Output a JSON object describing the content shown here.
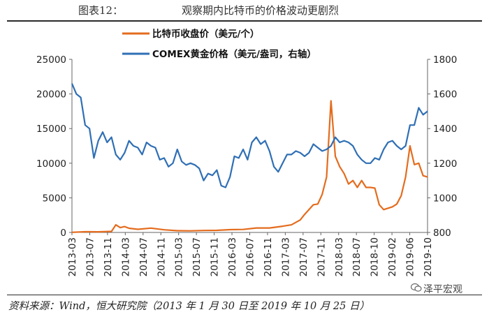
{
  "header": {
    "figure_no": "图表12：",
    "title": "观察期内比特币的价格波动更剧烈"
  },
  "source": "资料来源：Wind，恒大研究院（2013 年 1 月 30 日至 2019 年 10 月 25 日）",
  "watermark": "泽平宏观",
  "chart_data": {
    "type": "line",
    "title": "观察期内比特币的价格波动更剧烈",
    "xlabel": "",
    "ylabel": "",
    "x_tick_labels": [
      "2013-03",
      "2013-07",
      "2013-11",
      "2014-03",
      "2014-07",
      "2014-11",
      "2015-03",
      "2015-07",
      "2015-11",
      "2016-03",
      "2016-07",
      "2016-11",
      "2017-03",
      "2017-07",
      "2017-11",
      "2018-03",
      "2018-07",
      "2018-10",
      "2019-02",
      "2019-06",
      "2019-10"
    ],
    "ylim_left": [
      0,
      25000
    ],
    "yticks_left": [
      0,
      5000,
      10000,
      15000,
      20000,
      25000
    ],
    "ylim_right": [
      800,
      1800
    ],
    "yticks_right": [
      800,
      1000,
      1200,
      1400,
      1600,
      1800
    ],
    "grid": false,
    "legend": "top-left",
    "series": [
      {
        "name": "比特币收盘价（美元/个）",
        "axis": "left",
        "color": "#E46C1E",
        "x": [
          "2013-01",
          "2013-04",
          "2013-07",
          "2013-10",
          "2013-11",
          "2013-12",
          "2014-01",
          "2014-02",
          "2014-04",
          "2014-07",
          "2014-10",
          "2015-01",
          "2015-04",
          "2015-07",
          "2015-10",
          "2016-01",
          "2016-04",
          "2016-07",
          "2016-10",
          "2017-01",
          "2017-03",
          "2017-05",
          "2017-06",
          "2017-08",
          "2017-09",
          "2017-10",
          "2017-11",
          "2017-12",
          "2018-01",
          "2018-02",
          "2018-03",
          "2018-04",
          "2018-05",
          "2018-06",
          "2018-07",
          "2018-08",
          "2018-09",
          "2018-10",
          "2018-11",
          "2018-12",
          "2019-01",
          "2019-02",
          "2019-03",
          "2019-04",
          "2019-05",
          "2019-06",
          "2019-07",
          "2019-08",
          "2019-09",
          "2019-10"
        ],
        "values": [
          20,
          100,
          90,
          150,
          1100,
          700,
          850,
          600,
          450,
          620,
          380,
          250,
          230,
          280,
          300,
          400,
          430,
          650,
          650,
          900,
          1100,
          1800,
          2600,
          4000,
          4100,
          5500,
          8000,
          19000,
          11000,
          9500,
          8500,
          7000,
          7500,
          6500,
          7500,
          6500,
          6500,
          6400,
          4000,
          3300,
          3500,
          3700,
          4100,
          5300,
          8000,
          12500,
          9800,
          10000,
          8200,
          8000
        ]
      },
      {
        "name": "COMEX黄金价格（美元/盎司，右轴）",
        "axis": "right",
        "color": "#2F6FB5",
        "x": [
          "2013-01",
          "2013-02",
          "2013-03",
          "2013-04",
          "2013-05",
          "2013-06",
          "2013-07",
          "2013-08",
          "2013-09",
          "2013-10",
          "2013-11",
          "2013-12",
          "2014-01",
          "2014-02",
          "2014-03",
          "2014-04",
          "2014-05",
          "2014-06",
          "2014-07",
          "2014-08",
          "2014-09",
          "2014-10",
          "2014-11",
          "2014-12",
          "2015-01",
          "2015-02",
          "2015-03",
          "2015-04",
          "2015-05",
          "2015-06",
          "2015-07",
          "2015-08",
          "2015-09",
          "2015-10",
          "2015-11",
          "2015-12",
          "2016-01",
          "2016-02",
          "2016-03",
          "2016-04",
          "2016-05",
          "2016-06",
          "2016-07",
          "2016-08",
          "2016-09",
          "2016-10",
          "2016-11",
          "2016-12",
          "2017-01",
          "2017-02",
          "2017-03",
          "2017-04",
          "2017-05",
          "2017-06",
          "2017-07",
          "2017-08",
          "2017-09",
          "2017-10",
          "2017-11",
          "2017-12",
          "2018-01",
          "2018-02",
          "2018-03",
          "2018-04",
          "2018-05",
          "2018-06",
          "2018-07",
          "2018-08",
          "2018-09",
          "2018-10",
          "2018-11",
          "2018-12",
          "2019-01",
          "2019-02",
          "2019-03",
          "2019-04",
          "2019-05",
          "2019-06",
          "2019-07",
          "2019-08",
          "2019-09",
          "2019-10"
        ],
        "values": [
          1660,
          1600,
          1580,
          1420,
          1400,
          1230,
          1330,
          1380,
          1320,
          1350,
          1250,
          1220,
          1260,
          1330,
          1300,
          1290,
          1250,
          1320,
          1300,
          1290,
          1220,
          1230,
          1180,
          1200,
          1280,
          1210,
          1190,
          1200,
          1190,
          1170,
          1100,
          1140,
          1130,
          1160,
          1070,
          1060,
          1120,
          1240,
          1230,
          1280,
          1220,
          1320,
          1350,
          1310,
          1330,
          1270,
          1180,
          1150,
          1200,
          1250,
          1250,
          1270,
          1260,
          1240,
          1260,
          1310,
          1290,
          1270,
          1280,
          1300,
          1350,
          1320,
          1330,
          1320,
          1300,
          1250,
          1220,
          1200,
          1200,
          1230,
          1220,
          1280,
          1320,
          1330,
          1300,
          1280,
          1300,
          1420,
          1420,
          1520,
          1480,
          1500
        ]
      }
    ]
  }
}
